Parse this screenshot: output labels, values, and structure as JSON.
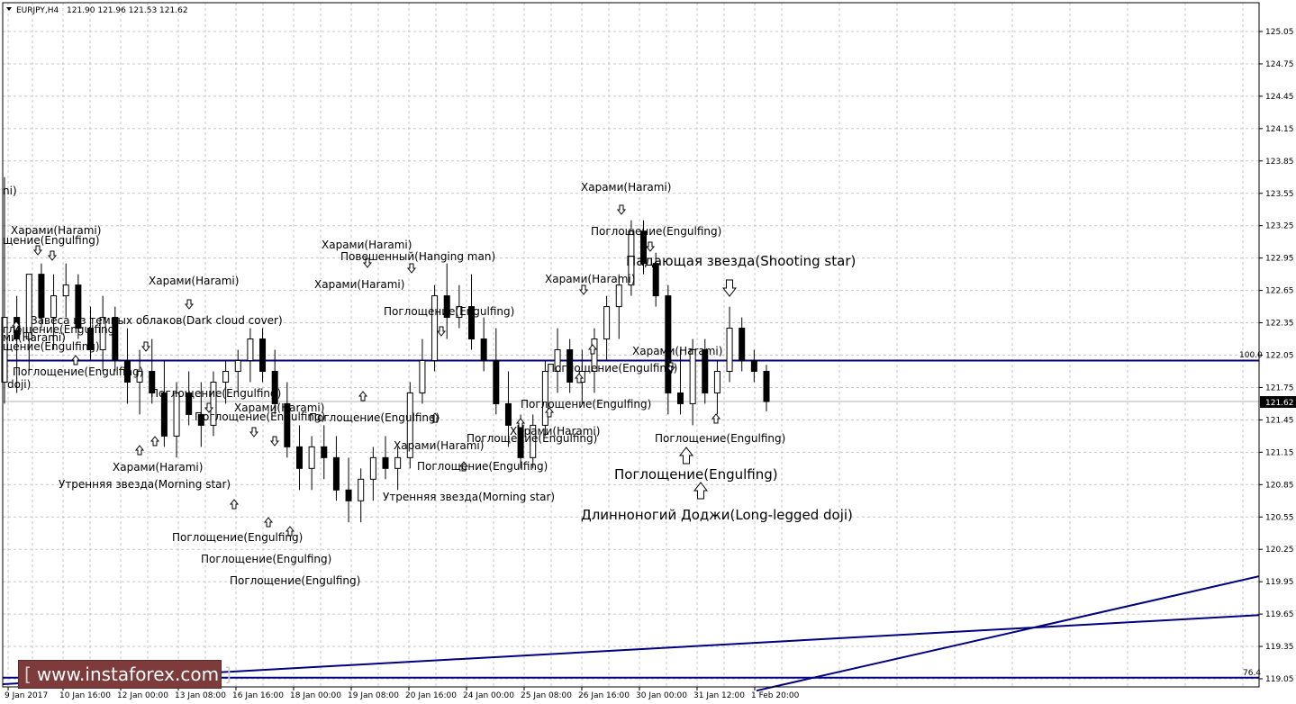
{
  "header": {
    "symbol": "EURJPY,H4",
    "ohlc": "121.90 121.96 121.53 121.62"
  },
  "watermark": {
    "open": "[",
    "text": "www.instaforex.com",
    "close": "]"
  },
  "colors": {
    "line": "#000080",
    "grid": "#c8c8c8",
    "candle": "#000000"
  },
  "chart_data": {
    "type": "candlestick",
    "symbol": "EURJPY",
    "timeframe": "H4",
    "ylim": [
      118.94,
      125.32
    ],
    "y_ticks": [
      "125.05",
      "124.75",
      "124.45",
      "124.15",
      "123.85",
      "123.55",
      "123.25",
      "122.95",
      "122.65",
      "122.35",
      "122.05",
      "121.75",
      "121.45",
      "121.15",
      "120.85",
      "120.55",
      "120.25",
      "119.95",
      "119.65",
      "119.35",
      "119.05"
    ],
    "x_ticks": [
      "9 Jan 2017",
      "10 Jan 16:00",
      "12 Jan 00:00",
      "13 Jan 08:00",
      "16 Jan 16:00",
      "18 Jan 00:00",
      "19 Jan 08:00",
      "20 Jan 16:00",
      "24 Jan 00:00",
      "25 Jan 08:00",
      "26 Jan 16:00",
      "30 Jan 00:00",
      "31 Jan 12:00",
      "1 Feb 20:00"
    ],
    "current_price": "121.62",
    "fib_levels": [
      {
        "label": "100.0",
        "value": 122.0
      },
      {
        "label": "76.4",
        "value": 119.06
      }
    ],
    "trend_lines": [
      {
        "from": [
          "9 Jan 2017",
          119.0
        ],
        "to": [
          "1 Feb 20:00+",
          119.64
        ]
      },
      {
        "from": [
          "31 Jan 12:00",
          118.94
        ],
        "to": [
          "1 Feb 20:00+",
          120.0
        ]
      }
    ],
    "candles": [
      [
        121.8,
        123.7,
        121.6,
        122.4
      ],
      [
        122.4,
        122.6,
        121.7,
        122.2
      ],
      [
        122.2,
        122.8,
        121.9,
        122.8
      ],
      [
        122.8,
        122.9,
        122.3,
        122.4
      ],
      [
        122.4,
        122.8,
        122.1,
        122.6
      ],
      [
        122.6,
        122.9,
        122.4,
        122.7
      ],
      [
        122.7,
        122.8,
        122.2,
        122.3
      ],
      [
        122.3,
        122.5,
        122.0,
        122.1
      ],
      [
        122.1,
        122.6,
        121.9,
        122.4
      ],
      [
        122.4,
        122.5,
        121.9,
        122.0
      ],
      [
        122.0,
        122.3,
        121.6,
        121.8
      ],
      [
        121.8,
        122.1,
        121.5,
        121.9
      ],
      [
        121.9,
        122.2,
        121.6,
        121.7
      ],
      [
        121.7,
        122.0,
        121.2,
        121.3
      ],
      [
        121.3,
        121.8,
        121.1,
        121.7
      ],
      [
        121.7,
        121.9,
        121.4,
        121.5
      ],
      [
        121.5,
        121.8,
        121.2,
        121.4
      ],
      [
        121.4,
        121.9,
        121.3,
        121.8
      ],
      [
        121.8,
        122.0,
        121.6,
        121.9
      ],
      [
        121.9,
        122.1,
        121.7,
        122.0
      ],
      [
        122.0,
        122.3,
        121.8,
        122.2
      ],
      [
        122.2,
        122.3,
        121.8,
        121.9
      ],
      [
        121.9,
        122.1,
        121.5,
        121.6
      ],
      [
        121.6,
        121.8,
        121.1,
        121.2
      ],
      [
        121.2,
        121.4,
        120.8,
        121.0
      ],
      [
        121.0,
        121.3,
        120.8,
        121.2
      ],
      [
        121.2,
        121.4,
        120.9,
        121.1
      ],
      [
        121.1,
        121.3,
        120.7,
        120.8
      ],
      [
        120.8,
        121.1,
        120.5,
        120.7
      ],
      [
        120.7,
        121.0,
        120.5,
        120.9
      ],
      [
        120.9,
        121.2,
        120.7,
        121.1
      ],
      [
        121.1,
        121.3,
        120.9,
        121.0
      ],
      [
        121.0,
        121.2,
        120.8,
        121.1
      ],
      [
        121.1,
        121.8,
        121.0,
        121.7
      ],
      [
        121.7,
        122.2,
        121.6,
        122.0
      ],
      [
        122.0,
        122.7,
        121.9,
        122.6
      ],
      [
        122.6,
        122.9,
        122.2,
        122.4
      ],
      [
        122.4,
        122.7,
        122.3,
        122.5
      ],
      [
        122.5,
        122.8,
        122.1,
        122.2
      ],
      [
        122.2,
        122.4,
        121.9,
        122.0
      ],
      [
        122.0,
        122.3,
        121.5,
        121.6
      ],
      [
        121.6,
        121.9,
        121.2,
        121.4
      ],
      [
        121.4,
        121.5,
        121.0,
        121.1
      ],
      [
        121.1,
        121.5,
        121.0,
        121.4
      ],
      [
        121.4,
        122.0,
        121.3,
        121.9
      ],
      [
        121.9,
        122.3,
        121.7,
        122.1
      ],
      [
        122.1,
        122.2,
        121.7,
        121.8
      ],
      [
        121.8,
        122.1,
        121.6,
        121.9
      ],
      [
        121.9,
        122.3,
        121.7,
        122.2
      ],
      [
        122.2,
        122.6,
        122.0,
        122.5
      ],
      [
        122.5,
        122.8,
        122.2,
        122.7
      ],
      [
        122.7,
        123.3,
        122.6,
        123.2
      ],
      [
        123.2,
        123.3,
        122.8,
        122.9
      ],
      [
        122.9,
        123.0,
        122.5,
        122.6
      ],
      [
        122.6,
        122.7,
        121.5,
        121.7
      ],
      [
        121.7,
        122.1,
        121.5,
        121.6
      ],
      [
        121.6,
        122.2,
        121.4,
        122.1
      ],
      [
        122.1,
        122.2,
        121.6,
        121.7
      ],
      [
        121.7,
        122.0,
        121.5,
        121.9
      ],
      [
        121.9,
        122.5,
        121.8,
        122.3
      ],
      [
        122.3,
        122.4,
        121.9,
        122.0
      ],
      [
        122.0,
        122.1,
        121.8,
        121.9
      ],
      [
        121.9,
        121.96,
        121.53,
        121.62
      ]
    ],
    "pattern_labels": [
      "ni)",
      "Харами(Harami)",
      "щение(Engulfing)",
      "Харами(Harami)",
      "Завеса из темных облаков(Dark cloud cover)",
      "глощение(Engulfing)",
      "ми(Harami)",
      "щение(Engulfing)",
      "Поглощение(Engulfing)",
      "doji)",
      "Поглощение(Engulfing)",
      "Поглощение(Engulfing)",
      "Харами(Harami)",
      "Харами(Harami)",
      "Утренняя звезда(Morning star)",
      "Поглощение(Engulfing)",
      "Поглощение(Engulfing)",
      "Поглощение(Engulfing)",
      "Харами(Harami)",
      "Повешенный(Hanging man)",
      "Харами(Harami)",
      "Поглощение(Engulfing)",
      "Поглощение(Engulfing)",
      "Харами(Harami)",
      "Поглощение(Engulfing)",
      "Утренняя звезда(Morning star)",
      "Поглощение(Engulfing)",
      "Харами(Harami)",
      "Поглощение(Engulfing)",
      "Харами(Harami)",
      "Поглощение(Engulfing)",
      "Харами(Harami)",
      "Поглощение(Engulfing)",
      "Падающая звезда(Shooting star)",
      "Харами(Harami)",
      "Поглощение(Engulfing)",
      "Поглощение(Engulfing)",
      "Длинноногий Доджи(Long-legged doji)"
    ]
  }
}
